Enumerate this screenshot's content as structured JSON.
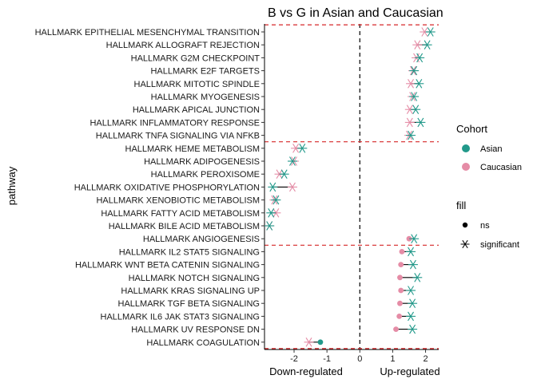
{
  "chart_data": {
    "type": "dumbbell",
    "title": "B vs G in Asian and Caucasian",
    "ylabel": "pathway",
    "xlabel": "",
    "x_region_labels": [
      "Down-regulated",
      "Up-regulated"
    ],
    "xlim": [
      -2.9,
      2.4
    ],
    "x_ticks": [
      -2,
      -1,
      0,
      1,
      2
    ],
    "x_tick_labels": [
      "-2",
      "-1",
      "0",
      "1",
      "2"
    ],
    "reference_line_x": 0,
    "grid": false,
    "legend_position": "right",
    "colors": {
      "Asian": "#21998a",
      "Caucasian": "#e58ca6",
      "connector": "#000000",
      "separator": "#d62728"
    },
    "legend": {
      "cohort_title": "Cohort",
      "cohort_items": [
        "Asian",
        "Caucasian"
      ],
      "fill_title": "fill",
      "fill_items": [
        "ns",
        "significant"
      ]
    },
    "group_separator_after_rows": [
      9,
      17,
      25
    ],
    "rows": [
      {
        "pathway": "HALLMARK EPITHELIAL MESENCHYMAL TRANSITION",
        "asian": 2.15,
        "asian_sig": true,
        "caucasian": 1.97,
        "caucasian_sig": true
      },
      {
        "pathway": "HALLMARK ALLOGRAFT REJECTION",
        "asian": 2.05,
        "asian_sig": true,
        "caucasian": 1.75,
        "caucasian_sig": true
      },
      {
        "pathway": "HALLMARK G2M CHECKPOINT",
        "asian": 1.82,
        "asian_sig": true,
        "caucasian": 1.72,
        "caucasian_sig": true
      },
      {
        "pathway": "HALLMARK E2F TARGETS",
        "asian": 1.65,
        "asian_sig": true,
        "caucasian": 1.62,
        "caucasian_sig": true
      },
      {
        "pathway": "HALLMARK MITOTIC SPINDLE",
        "asian": 1.8,
        "asian_sig": true,
        "caucasian": 1.55,
        "caucasian_sig": true
      },
      {
        "pathway": "HALLMARK MYOGENESIS",
        "asian": 1.65,
        "asian_sig": true,
        "caucasian": 1.6,
        "caucasian_sig": true
      },
      {
        "pathway": "HALLMARK APICAL JUNCTION",
        "asian": 1.7,
        "asian_sig": true,
        "caucasian": 1.52,
        "caucasian_sig": true
      },
      {
        "pathway": "HALLMARK INFLAMMATORY RESPONSE",
        "asian": 1.85,
        "asian_sig": true,
        "caucasian": 1.52,
        "caucasian_sig": true
      },
      {
        "pathway": "HALLMARK TNFA SIGNALING VIA NFKB",
        "asian": 1.55,
        "asian_sig": true,
        "caucasian": 1.5,
        "caucasian_sig": true
      },
      {
        "pathway": "HALLMARK HEME METABOLISM",
        "asian": -1.75,
        "asian_sig": true,
        "caucasian": -1.95,
        "caucasian_sig": true
      },
      {
        "pathway": "HALLMARK ADIPOGENESIS",
        "asian": -2.05,
        "asian_sig": true,
        "caucasian": -2.0,
        "caucasian_sig": true
      },
      {
        "pathway": "HALLMARK PEROXISOME",
        "asian": -2.3,
        "asian_sig": true,
        "caucasian": -2.45,
        "caucasian_sig": true
      },
      {
        "pathway": "HALLMARK OXIDATIVE PHOSPHORYLATION",
        "asian": -2.65,
        "asian_sig": true,
        "caucasian": -2.05,
        "caucasian_sig": true
      },
      {
        "pathway": "HALLMARK XENOBIOTIC METABOLISM",
        "asian": -2.55,
        "asian_sig": true,
        "caucasian": -2.6,
        "caucasian_sig": true
      },
      {
        "pathway": "HALLMARK FATTY ACID METABOLISM",
        "asian": -2.7,
        "asian_sig": true,
        "caucasian": -2.55,
        "caucasian_sig": true
      },
      {
        "pathway": "HALLMARK BILE ACID METABOLISM",
        "asian": -2.75,
        "asian_sig": true,
        "caucasian": -2.75,
        "caucasian_sig": true
      },
      {
        "pathway": "HALLMARK ANGIOGENESIS",
        "asian": 1.65,
        "asian_sig": true,
        "caucasian": 1.5,
        "caucasian_sig": false
      },
      {
        "pathway": "HALLMARK IL2 STAT5 SIGNALING",
        "asian": 1.55,
        "asian_sig": true,
        "caucasian": 1.28,
        "caucasian_sig": false
      },
      {
        "pathway": "HALLMARK WNT BETA CATENIN SIGNALING",
        "asian": 1.62,
        "asian_sig": true,
        "caucasian": 1.25,
        "caucasian_sig": false
      },
      {
        "pathway": "HALLMARK NOTCH SIGNALING",
        "asian": 1.75,
        "asian_sig": true,
        "caucasian": 1.22,
        "caucasian_sig": false
      },
      {
        "pathway": "HALLMARK KRAS SIGNALING UP",
        "asian": 1.55,
        "asian_sig": true,
        "caucasian": 1.25,
        "caucasian_sig": false
      },
      {
        "pathway": "HALLMARK TGF BETA SIGNALING",
        "asian": 1.6,
        "asian_sig": true,
        "caucasian": 1.22,
        "caucasian_sig": false
      },
      {
        "pathway": "HALLMARK IL6 JAK STAT3 SIGNALING",
        "asian": 1.55,
        "asian_sig": true,
        "caucasian": 1.2,
        "caucasian_sig": false
      },
      {
        "pathway": "HALLMARK UV RESPONSE DN",
        "asian": 1.6,
        "asian_sig": true,
        "caucasian": 1.1,
        "caucasian_sig": false
      },
      {
        "pathway": "HALLMARK COAGULATION",
        "asian": -1.2,
        "asian_sig": false,
        "caucasian": -1.55,
        "caucasian_sig": true
      }
    ]
  }
}
